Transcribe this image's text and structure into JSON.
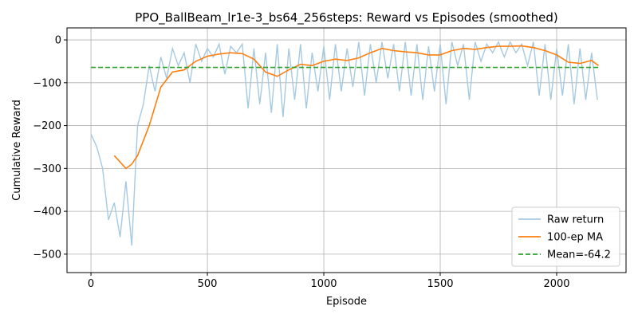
{
  "chart_data": {
    "type": "line",
    "title": "PPO_BallBeam_lr1e-3_bs64_256steps: Reward vs Episodes (smoothed)",
    "xlabel": "Episode",
    "ylabel": "Cumulative Reward",
    "xlim": [
      -103,
      2298
    ],
    "ylim": [
      -543,
      28
    ],
    "xticks": [
      0,
      500,
      1000,
      1500,
      2000
    ],
    "yticks": [
      {
        "value": -500,
        "label": "−500"
      },
      {
        "value": -400,
        "label": "−400"
      },
      {
        "value": -300,
        "label": "−300"
      },
      {
        "value": -200,
        "label": "−200"
      },
      {
        "value": -100,
        "label": "−100"
      },
      0
    ],
    "grid": true,
    "legend": "lower right",
    "series": [
      {
        "name": "Raw return",
        "color": "#a6c9e2",
        "x": [
          0,
          25,
          50,
          75,
          100,
          125,
          150,
          175,
          200,
          225,
          250,
          275,
          300,
          325,
          350,
          375,
          400,
          425,
          450,
          475,
          500,
          525,
          550,
          575,
          600,
          625,
          650,
          675,
          700,
          725,
          750,
          775,
          800,
          825,
          850,
          875,
          900,
          925,
          950,
          975,
          1000,
          1025,
          1050,
          1075,
          1100,
          1125,
          1150,
          1175,
          1200,
          1225,
          1250,
          1275,
          1300,
          1325,
          1350,
          1375,
          1400,
          1425,
          1450,
          1475,
          1500,
          1525,
          1550,
          1575,
          1600,
          1625,
          1650,
          1675,
          1700,
          1725,
          1750,
          1775,
          1800,
          1825,
          1850,
          1875,
          1900,
          1925,
          1950,
          1975,
          2000,
          2025,
          2050,
          2075,
          2100,
          2125,
          2150,
          2175
        ],
        "values": [
          -220,
          -250,
          -300,
          -420,
          -380,
          -460,
          -330,
          -480,
          -200,
          -150,
          -60,
          -120,
          -40,
          -90,
          -20,
          -60,
          -30,
          -100,
          -10,
          -50,
          -20,
          -40,
          -10,
          -80,
          -15,
          -30,
          -10,
          -160,
          -20,
          -150,
          -30,
          -170,
          -10,
          -180,
          -20,
          -140,
          -10,
          -160,
          -30,
          -120,
          -15,
          -140,
          -10,
          -120,
          -20,
          -110,
          -5,
          -130,
          -10,
          -100,
          -5,
          -90,
          -10,
          -120,
          -5,
          -130,
          -10,
          -140,
          -15,
          -120,
          -10,
          -150,
          -5,
          -60,
          -10,
          -140,
          -5,
          -50,
          -10,
          -30,
          -5,
          -40,
          -5,
          -30,
          -10,
          -60,
          -5,
          -130,
          -10,
          -140,
          -20,
          -130,
          -10,
          -150,
          -20,
          -140,
          -30,
          -140
        ]
      },
      {
        "name": "100-ep MA",
        "color": "#ff7f0e",
        "x": [
          100,
          150,
          175,
          200,
          250,
          300,
          350,
          400,
          450,
          500,
          550,
          600,
          650,
          700,
          750,
          800,
          850,
          900,
          950,
          1000,
          1050,
          1100,
          1150,
          1200,
          1250,
          1300,
          1350,
          1400,
          1450,
          1500,
          1550,
          1600,
          1650,
          1700,
          1750,
          1800,
          1850,
          1900,
          1950,
          2000,
          2050,
          2100,
          2150,
          2180
        ],
        "values": [
          -270,
          -300,
          -290,
          -270,
          -200,
          -110,
          -75,
          -70,
          -50,
          -38,
          -33,
          -30,
          -32,
          -45,
          -75,
          -85,
          -70,
          -57,
          -60,
          -50,
          -45,
          -48,
          -42,
          -30,
          -20,
          -25,
          -28,
          -30,
          -35,
          -35,
          -25,
          -20,
          -22,
          -18,
          -15,
          -15,
          -14,
          -18,
          -25,
          -35,
          -52,
          -55,
          -48,
          -60
        ]
      }
    ],
    "mean": {
      "name": "Mean=-64.2",
      "value": -64.2,
      "color": "#2ca02c"
    }
  }
}
